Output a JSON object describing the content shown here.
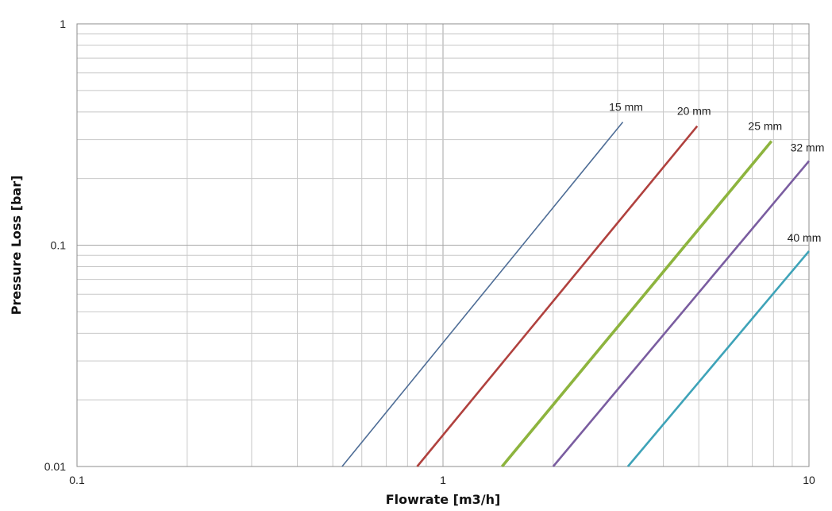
{
  "chart_data": {
    "type": "line",
    "title": "",
    "xlabel": "Flowrate [m3/h]",
    "ylabel": "Pressure Loss [bar]",
    "x_scale": "log",
    "y_scale": "log",
    "xlim": [
      0.1,
      10
    ],
    "ylim": [
      0.01,
      1
    ],
    "grid": true,
    "x_ticks": [
      0.1,
      1,
      10
    ],
    "x_tick_labels": [
      "0.1",
      "1",
      "10"
    ],
    "y_ticks": [
      0.01,
      0.1,
      1
    ],
    "y_tick_labels": [
      "0.01",
      "0.1",
      "1"
    ],
    "series": [
      {
        "name": "15 mm",
        "color": "#4e6d96",
        "x": [
          0.53,
          3.1
        ],
        "y": [
          0.01,
          0.36
        ]
      },
      {
        "name": "20 mm",
        "color": "#b0413e",
        "x": [
          0.85,
          4.95
        ],
        "y": [
          0.01,
          0.345
        ]
      },
      {
        "name": "25 mm",
        "color": "#8db43e",
        "x": [
          1.45,
          7.9
        ],
        "y": [
          0.01,
          0.295
        ]
      },
      {
        "name": "32 mm",
        "color": "#7a5da0",
        "x": [
          2.0,
          10
        ],
        "y": [
          0.01,
          0.24
        ]
      },
      {
        "name": "40 mm",
        "color": "#3ea3b8",
        "x": [
          3.2,
          10
        ],
        "y": [
          0.01,
          0.094
        ]
      }
    ]
  }
}
